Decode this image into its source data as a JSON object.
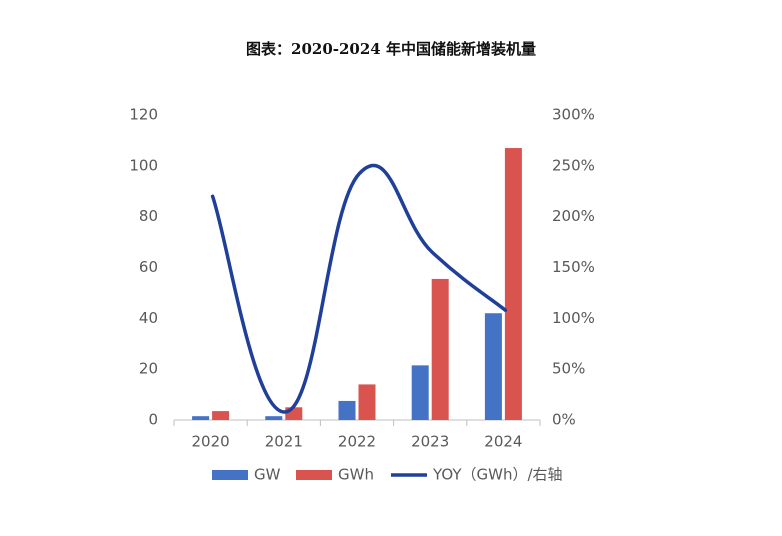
{
  "chart_data": {
    "type": "bar",
    "title": "图表：2020-2024 年中国储能新增装机量",
    "categories": [
      "2020",
      "2021",
      "2022",
      "2023",
      "2024"
    ],
    "series": [
      {
        "name": "GW",
        "type": "bar",
        "axis": "left",
        "color": "#4472C4",
        "values": [
          1.5,
          1.5,
          7.5,
          21.5,
          42.0
        ]
      },
      {
        "name": "GWh",
        "type": "bar",
        "axis": "left",
        "color": "#D9534F",
        "values": [
          3.5,
          5.0,
          14.0,
          55.5,
          107.0
        ]
      },
      {
        "name": "YOY（GWh）/右轴",
        "type": "line",
        "axis": "right",
        "color": "#1F3F9A",
        "values": [
          2.2,
          0.08,
          2.42,
          1.65,
          1.08
        ]
      }
    ],
    "y_left": {
      "min": 0,
      "max": 120,
      "ticks": [
        "0",
        "20",
        "40",
        "60",
        "80",
        "100",
        "120"
      ]
    },
    "y_right": {
      "min": 0,
      "max": 3,
      "ticks": [
        "0%",
        "50%",
        "100%",
        "150%",
        "200%",
        "250%",
        "300%"
      ]
    },
    "legend_position": "bottom",
    "grid": false
  }
}
